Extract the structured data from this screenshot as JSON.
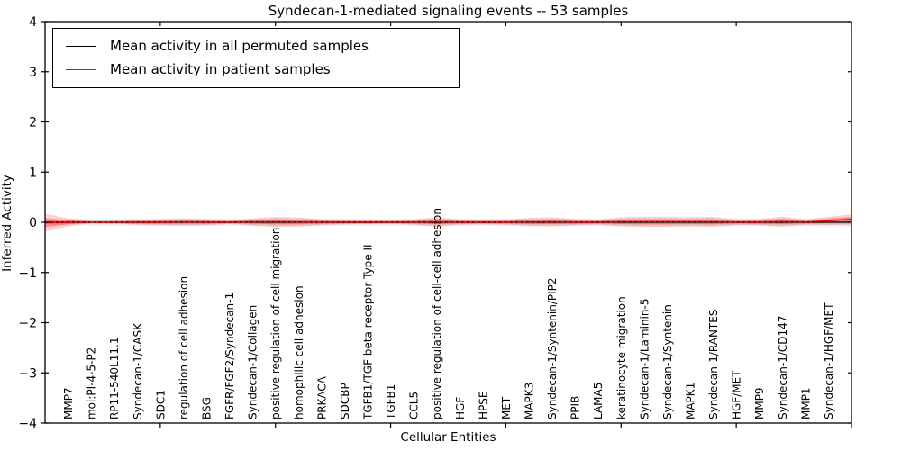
{
  "figure": {
    "title": "Syndecan-1-mediated signaling events -- 53 samples",
    "xlabel": "Cellular Entities",
    "ylabel": "Inferred Activity"
  },
  "legend": {
    "entries": [
      {
        "name": "permuted-mean",
        "label": "Mean activity in all permuted samples",
        "color": "#000000"
      },
      {
        "name": "patient-mean",
        "label": "Mean activity in patient samples",
        "color": "#ff0000"
      }
    ]
  },
  "colors": {
    "permuted_line": "#000000",
    "patient_line": "#ff0000",
    "patient_band_outer": "rgba(255,0,0,0.18)",
    "patient_band_inner": "rgba(255,0,0,0.30)",
    "permuted_band_outer": "rgba(0,0,0,0.07)",
    "permuted_band_inner": "rgba(0,0,0,0.10)",
    "axis": "#000000"
  },
  "chart_data": {
    "type": "line",
    "title": "Syndecan-1-mediated signaling events -- 53 samples",
    "xlabel": "Cellular Entities",
    "ylabel": "Inferred Activity",
    "xlim": [
      0,
      35
    ],
    "ylim": [
      -4,
      4
    ],
    "grid": false,
    "legend_position": "upper left",
    "y_tick_values": [
      4,
      3,
      2,
      1,
      0,
      -1,
      -2,
      -3,
      -4
    ],
    "y_tick_labels": [
      "4",
      "3",
      "2",
      "1",
      "0",
      "−1",
      "−2",
      "−3",
      "−4"
    ],
    "x_tick_positions": [
      5,
      10,
      15,
      20,
      25,
      30,
      35
    ],
    "categories": [
      "MMP7",
      "mol:PI-4-5-P2",
      "RP11-540L11.1",
      "Syndecan-1/CASK",
      "SDC1",
      "regulation of cell adhesion",
      "BSG",
      "FGFR/FGF2/Syndecan-1",
      "Syndecan-1/Collagen",
      "positive regulation of cell migration",
      "homophilic cell adhesion",
      "PRKACA",
      "SDCBP",
      "TGFB1/TGF beta receptor Type II",
      "TGFB1",
      "CCL5",
      "positive regulation of cell-cell adhesion",
      "HGF",
      "HPSE",
      "MET",
      "MAPK3",
      "Syndecan-1/Syntenin/PIP2",
      "PPIB",
      "LAMA5",
      "keratinocyte migration",
      "Syndecan-1/Laminin-5",
      "Syndecan-1/Syntenin",
      "MAPK1",
      "Syndecan-1/RANTES",
      "HGF/MET",
      "MMP9",
      "Syndecan-1/CD147",
      "MMP1",
      "Syndecan-1/HGF/MET"
    ],
    "category_x_start": 1,
    "x": [
      0,
      1,
      2,
      3,
      4,
      5,
      6,
      7,
      8,
      9,
      10,
      11,
      12,
      13,
      14,
      15,
      16,
      17,
      18,
      19,
      20,
      21,
      22,
      23,
      24,
      25,
      26,
      27,
      28,
      29,
      30,
      31,
      32,
      33,
      34,
      35
    ],
    "series": [
      {
        "name": "Mean activity in all permuted samples",
        "color": "#000000",
        "values": [
          0,
          0,
          0,
          0,
          0,
          0,
          0,
          0,
          0,
          0,
          0,
          0,
          0,
          0,
          0,
          0,
          0,
          0,
          0,
          0,
          0,
          0,
          0,
          0,
          0,
          0,
          0,
          0,
          0,
          0,
          0,
          0,
          0,
          0,
          0,
          0
        ]
      },
      {
        "name": "Mean activity in patient samples",
        "color": "#ff0000",
        "values": [
          -0.01,
          0,
          0,
          0,
          0,
          0,
          0.005,
          0,
          0,
          0.005,
          0.01,
          0.005,
          0,
          0,
          0,
          0,
          0,
          0.01,
          0,
          0,
          0,
          0.005,
          0.01,
          0,
          0,
          0.01,
          0.01,
          0.01,
          0.01,
          0.01,
          0,
          0,
          0.015,
          0,
          0.03,
          0.06
        ]
      }
    ],
    "bands": [
      {
        "name": "permuted-activity-range",
        "series": "Mean activity in all permuted samples",
        "halfwidths": [
          0.05,
          0.06,
          0.07,
          0.07,
          0.07,
          0.075,
          0.08,
          0.075,
          0.07,
          0.075,
          0.08,
          0.08,
          0.075,
          0.07,
          0.065,
          0.065,
          0.07,
          0.08,
          0.07,
          0.07,
          0.07,
          0.08,
          0.08,
          0.075,
          0.07,
          0.08,
          0.085,
          0.085,
          0.08,
          0.085,
          0.08,
          0.075,
          0.085,
          0.075,
          0.08,
          0.09
        ]
      },
      {
        "name": "patient-activity-range",
        "series": "Mean activity in patient samples",
        "halfwidths": [
          0.18,
          0.08,
          0.02,
          0.025,
          0.05,
          0.06,
          0.065,
          0.06,
          0.03,
          0.07,
          0.1,
          0.09,
          0.055,
          0.04,
          0.035,
          0.03,
          0.05,
          0.095,
          0.05,
          0.04,
          0.05,
          0.08,
          0.09,
          0.06,
          0.05,
          0.09,
          0.1,
          0.1,
          0.09,
          0.1,
          0.05,
          0.06,
          0.1,
          0.05,
          0.08,
          0.1
        ]
      }
    ]
  }
}
